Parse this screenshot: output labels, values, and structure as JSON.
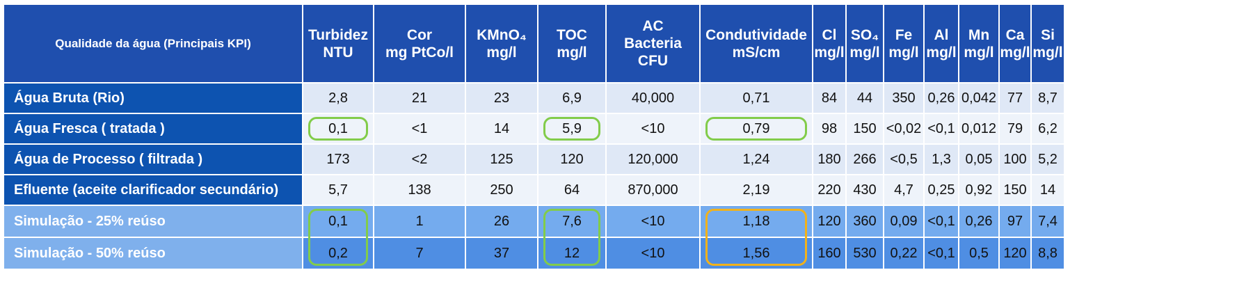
{
  "header": {
    "kpi": "Qualidade da água (Principais KPI)",
    "cols": [
      {
        "l1": "Turbidez",
        "l2": "NTU",
        "l3": ""
      },
      {
        "l1": "Cor",
        "l2": "mg PtCo/l",
        "l3": ""
      },
      {
        "l1": "KMnO₄",
        "l2": "mg/l",
        "l3": ""
      },
      {
        "l1": "TOC",
        "l2": "mg/l",
        "l3": ""
      },
      {
        "l1": "AC",
        "l2": "Bacteria",
        "l3": "CFU"
      },
      {
        "l1": "Condutividade",
        "l2": "mS/cm",
        "l3": ""
      },
      {
        "l1": "Cl",
        "l2": "mg/l",
        "l3": ""
      },
      {
        "l1": "SO₄",
        "l2": "mg/l",
        "l3": ""
      },
      {
        "l1": "Fe",
        "l2": "mg/l",
        "l3": ""
      },
      {
        "l1": "Al",
        "l2": "mg/l",
        "l3": ""
      },
      {
        "l1": "Mn",
        "l2": "mg/l",
        "l3": ""
      },
      {
        "l1": "Ca",
        "l2": "mg/l",
        "l3": ""
      },
      {
        "l1": "Si",
        "l2": "mg/l",
        "l3": ""
      }
    ]
  },
  "rows": [
    {
      "label": "Água Bruta (Rio)",
      "values": [
        "2,8",
        "21",
        "23",
        "6,9",
        "40,000",
        "0,71",
        "84",
        "44",
        "350",
        "0,26",
        "0,042",
        "77",
        "8,7"
      ]
    },
    {
      "label": "Água Fresca ( tratada )",
      "values": [
        "0,1",
        "<1",
        "14",
        "5,9",
        "<10",
        "0,79",
        "98",
        "150",
        "<0,02",
        "<0,1",
        "0,012",
        "79",
        "6,2"
      ]
    },
    {
      "label": "Água de Processo ( filtrada )",
      "values": [
        "173",
        "<2",
        "125",
        "120",
        "120,000",
        "1,24",
        "180",
        "266",
        "<0,5",
        "1,3",
        "0,05",
        "100",
        "5,2"
      ]
    },
    {
      "label": "Efluente (aceite clarificador secundário)",
      "values": [
        "5,7",
        "138",
        "250",
        "64",
        "870,000",
        "2,19",
        "220",
        "430",
        "4,7",
        "0,25",
        "0,92",
        "150",
        "14"
      ]
    },
    {
      "label": "Simulação - 25% reúso",
      "values": [
        "0,1",
        "1",
        "26",
        "7,6",
        "<10",
        "1,18",
        "120",
        "360",
        "0,09",
        "<0,1",
        "0,26",
        "97",
        "7,4"
      ]
    },
    {
      "label": "Simulação - 50% reúso",
      "values": [
        "0,2",
        "7",
        "37",
        "12",
        "<10",
        "1,56",
        "160",
        "530",
        "0,22",
        "<0,1",
        "0,5",
        "120",
        "8,8"
      ]
    }
  ],
  "colors": {
    "header": "#1f4fae",
    "row_label": "#0d53b0",
    "sim_label": "#7fb0ec",
    "highlight_green": "#82cc4a",
    "highlight_orange": "#f2b21a"
  }
}
